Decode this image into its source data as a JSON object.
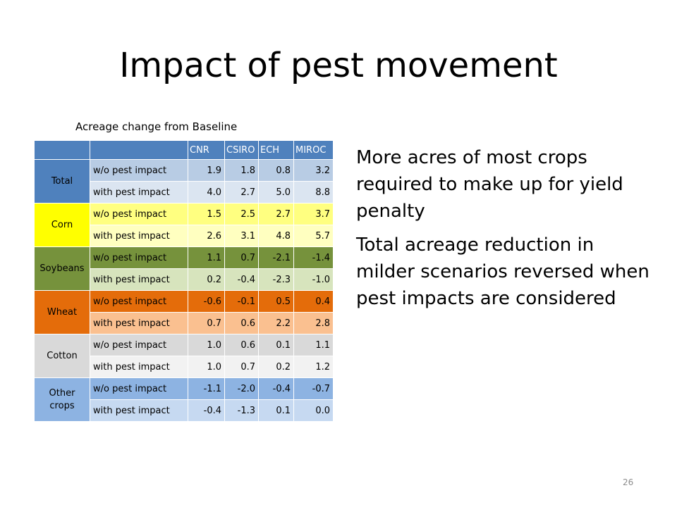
{
  "title": "Impact of pest movement",
  "table_caption": "Acreage change from Baseline",
  "table": {
    "columns": [
      "CNR",
      "CSIRO",
      "ECH",
      "MIROC"
    ],
    "groups": [
      {
        "crop": "Total",
        "colors": {
          "crop": "#4f81bd",
          "row1": "#b8cce4",
          "row2": "#dbe5f1",
          "crop_text": "#000000"
        },
        "rows": [
          {
            "label": "w/o pest impact",
            "values": [
              "1.9",
              "1.8",
              "0.8",
              "3.2"
            ]
          },
          {
            "label": "with pest impact",
            "values": [
              "4.0",
              "2.7",
              "5.0",
              "8.8"
            ]
          }
        ]
      },
      {
        "crop": "Corn",
        "colors": {
          "crop": "#ffff00",
          "row1": "#ffff80",
          "row2": "#ffffc0",
          "crop_text": "#000000"
        },
        "rows": [
          {
            "label": "w/o pest impact",
            "values": [
              "1.5",
              "2.5",
              "2.7",
              "3.7"
            ]
          },
          {
            "label": "with pest impact",
            "values": [
              "2.6",
              "3.1",
              "4.8",
              "5.7"
            ]
          }
        ]
      },
      {
        "crop": "Soybeans",
        "colors": {
          "crop": "#76923c",
          "row1": "#76923c",
          "row2": "#d7e4bd",
          "crop_text": "#000000"
        },
        "rows": [
          {
            "label": "w/o pest impact",
            "values": [
              "1.1",
              "0.7",
              "-2.1",
              "-1.4"
            ]
          },
          {
            "label": "with pest impact",
            "values": [
              "0.2",
              "-0.4",
              "-2.3",
              "-1.0"
            ]
          }
        ]
      },
      {
        "crop": "Wheat",
        "colors": {
          "crop": "#e46c0a",
          "row1": "#e46c0a",
          "row2": "#fac090",
          "crop_text": "#000000"
        },
        "rows": [
          {
            "label": "w/o pest impact",
            "values": [
              "-0.6",
              "-0.1",
              "0.5",
              "0.4"
            ]
          },
          {
            "label": "with pest impact",
            "values": [
              "0.7",
              "0.6",
              "2.2",
              "2.8"
            ]
          }
        ]
      },
      {
        "crop": "Cotton",
        "colors": {
          "crop": "#d9d9d9",
          "row1": "#d9d9d9",
          "row2": "#f2f2f2",
          "crop_text": "#000000"
        },
        "rows": [
          {
            "label": "w/o pest impact",
            "values": [
              "1.0",
              "0.6",
              "0.1",
              "1.1"
            ]
          },
          {
            "label": "with pest impact",
            "values": [
              "1.0",
              "0.7",
              "0.2",
              "1.2"
            ]
          }
        ]
      },
      {
        "crop": "Other crops",
        "colors": {
          "crop": "#8db3e2",
          "row1": "#8db3e2",
          "row2": "#c6d9f1",
          "crop_text": "#000000"
        },
        "rows": [
          {
            "label": "w/o pest impact",
            "values": [
              "-1.1",
              "-2.0",
              "-0.4",
              "-0.7"
            ]
          },
          {
            "label": "with pest impact",
            "values": [
              "-0.4",
              "-1.3",
              "0.1",
              "0.0"
            ]
          }
        ]
      }
    ],
    "header_color": "#4f81bd"
  },
  "bullets": [
    "More acres of most crops required to make up for yield penalty",
    "Total acreage reduction in milder scenarios reversed when pest impacts are considered"
  ],
  "page_number": "26"
}
